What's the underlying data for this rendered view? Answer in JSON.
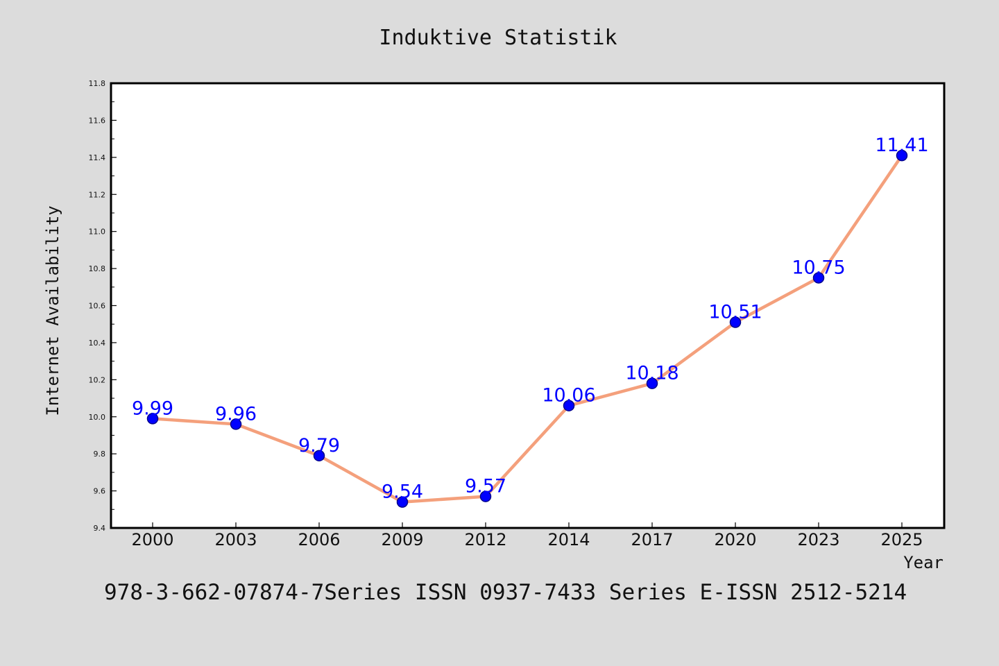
{
  "footer": "978-3-662-07874-7Series ISSN 0937-7433 Series E-ISSN 2512-5214",
  "colors": {
    "background": "#dcdcdc",
    "plot_background": "#ffffff",
    "line": "#f4a07c",
    "marker": "#0000ff",
    "marker_edge": "#00008b",
    "data_label": "#0000ff"
  },
  "chart_data": {
    "type": "line",
    "title": "Induktive Statistik",
    "xlabel": "Year",
    "ylabel": "Internet Availability",
    "categories": [
      "2000",
      "2003",
      "2006",
      "2009",
      "2012",
      "2014",
      "2017",
      "2020",
      "2023",
      "2025"
    ],
    "series": [
      {
        "values": [
          9.99,
          9.96,
          9.79,
          9.54,
          9.57,
          10.06,
          10.18,
          10.51,
          10.75,
          11.41
        ],
        "data_labels": [
          "9.99",
          "9.96",
          "9.79",
          "9.54",
          "9.57",
          "10.06",
          "10.18",
          "10.51",
          "10.75",
          "11.41"
        ]
      }
    ],
    "ylim": [
      9.4,
      11.8
    ],
    "yticks": [
      "9.4",
      "9.6",
      "9.8",
      "10.0",
      "10.2",
      "10.4",
      "10.6",
      "10.8",
      "11.0",
      "11.2",
      "11.4",
      "11.6",
      "11.8"
    ],
    "grid": false,
    "legend": "none"
  }
}
